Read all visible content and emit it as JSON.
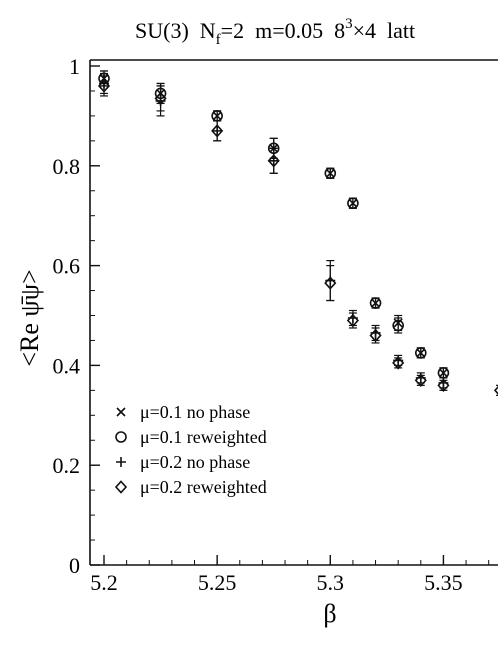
{
  "chart_data": {
    "type": "scatter",
    "title_parts": {
      "group": "SU(3)",
      "nf_base": "N",
      "nf_sub": "f",
      "nf_value": "=2",
      "mass": "m=0.05",
      "vol_base": "8",
      "vol_sup": "3",
      "vol_rest": "×4",
      "lattice": "latt"
    },
    "xlabel": "β",
    "ylabel": "<Re ψ̄ψ>",
    "xlim": [
      5.2,
      5.375
    ],
    "ylim": [
      0,
      1.0
    ],
    "x_ticks": [
      "5.2",
      "5.25",
      "5.3",
      "5.35"
    ],
    "x_tick_values": [
      5.2,
      5.25,
      5.3,
      5.35
    ],
    "y_ticks": [
      "0",
      "0.2",
      "0.4",
      "0.6",
      "0.8",
      "1"
    ],
    "y_tick_values": [
      0,
      0.2,
      0.4,
      0.6,
      0.8,
      1.0
    ],
    "legend_position": "bottom-left",
    "series": [
      {
        "name": "μ=0.1  no phase",
        "marker": "cross",
        "points": [
          {
            "x": 5.2,
            "y": 0.975,
            "err": 0.015
          },
          {
            "x": 5.225,
            "y": 0.945,
            "err": 0.02
          },
          {
            "x": 5.25,
            "y": 0.9,
            "err": 0.01
          },
          {
            "x": 5.275,
            "y": 0.835,
            "err": 0.02
          },
          {
            "x": 5.3,
            "y": 0.785,
            "err": 0.01
          },
          {
            "x": 5.31,
            "y": 0.725,
            "err": 0.01
          },
          {
            "x": 5.32,
            "y": 0.525,
            "err": 0.01
          },
          {
            "x": 5.33,
            "y": 0.485,
            "err": 0.015
          },
          {
            "x": 5.34,
            "y": 0.425,
            "err": 0.01
          },
          {
            "x": 5.35,
            "y": 0.385,
            "err": 0.01
          }
        ]
      },
      {
        "name": "μ=0.1  reweighted",
        "marker": "circle",
        "points": [
          {
            "x": 5.2,
            "y": 0.975,
            "err": 0.015
          },
          {
            "x": 5.225,
            "y": 0.945,
            "err": 0.02
          },
          {
            "x": 5.25,
            "y": 0.9,
            "err": 0.01
          },
          {
            "x": 5.275,
            "y": 0.835,
            "err": 0.02
          },
          {
            "x": 5.3,
            "y": 0.785,
            "err": 0.01
          },
          {
            "x": 5.31,
            "y": 0.725,
            "err": 0.01
          },
          {
            "x": 5.32,
            "y": 0.525,
            "err": 0.01
          },
          {
            "x": 5.33,
            "y": 0.48,
            "err": 0.015
          },
          {
            "x": 5.34,
            "y": 0.425,
            "err": 0.01
          },
          {
            "x": 5.35,
            "y": 0.385,
            "err": 0.01
          }
        ]
      },
      {
        "name": "μ=0.2  no phase",
        "marker": "plus",
        "points": [
          {
            "x": 5.2,
            "y": 0.965,
            "err": 0.02
          },
          {
            "x": 5.225,
            "y": 0.93,
            "err": 0.03
          },
          {
            "x": 5.25,
            "y": 0.87,
            "err": 0.02
          },
          {
            "x": 5.275,
            "y": 0.81,
            "err": 0.025
          },
          {
            "x": 5.3,
            "y": 0.57,
            "err": 0.04
          },
          {
            "x": 5.31,
            "y": 0.495,
            "err": 0.015
          },
          {
            "x": 5.32,
            "y": 0.465,
            "err": 0.015
          },
          {
            "x": 5.33,
            "y": 0.41,
            "err": 0.01
          },
          {
            "x": 5.34,
            "y": 0.375,
            "err": 0.01
          },
          {
            "x": 5.35,
            "y": 0.365,
            "err": 0.01
          }
        ]
      },
      {
        "name": "μ=0.2  reweighted",
        "marker": "diamond",
        "points": [
          {
            "x": 5.2,
            "y": 0.96,
            "err": 0.02
          },
          {
            "x": 5.225,
            "y": 0.935,
            "err": 0.025
          },
          {
            "x": 5.25,
            "y": 0.87,
            "err": 0.02
          },
          {
            "x": 5.275,
            "y": 0.81,
            "err": 0.025
          },
          {
            "x": 5.3,
            "y": 0.565,
            "err": 0.035
          },
          {
            "x": 5.31,
            "y": 0.49,
            "err": 0.015
          },
          {
            "x": 5.32,
            "y": 0.46,
            "err": 0.015
          },
          {
            "x": 5.33,
            "y": 0.405,
            "err": 0.01
          },
          {
            "x": 5.34,
            "y": 0.37,
            "err": 0.01
          },
          {
            "x": 5.35,
            "y": 0.36,
            "err": 0.01
          },
          {
            "x": 5.375,
            "y": 0.35,
            "err": 0.01
          }
        ]
      }
    ]
  }
}
